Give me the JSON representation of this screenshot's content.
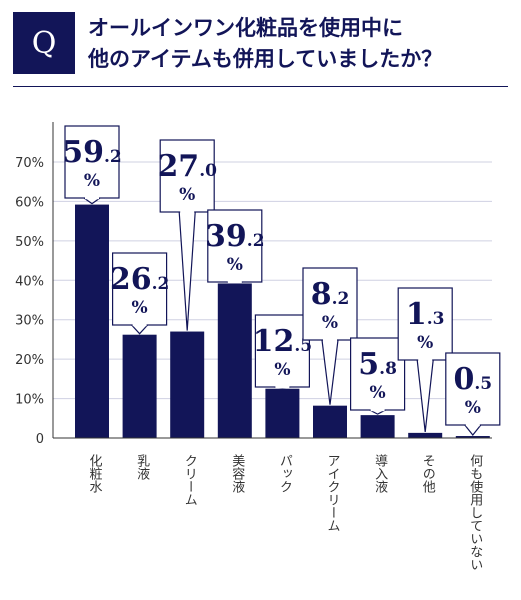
{
  "question": {
    "badge": "Q",
    "line1": "オールインワン化粧品を使用中に",
    "line2": "他のアイテムも併用していましたか？"
  },
  "colors": {
    "bar": "#121558",
    "grid": "#cfd0e2",
    "callout_border": "#121558"
  },
  "chart_data": {
    "type": "bar",
    "title": "",
    "xlabel": "",
    "ylabel": "",
    "unit": "%",
    "ylim": [
      0,
      70
    ],
    "yticks": [
      "0",
      "10%",
      "20%",
      "30%",
      "40%",
      "50%",
      "60%",
      "70%"
    ],
    "categories": [
      "化粧水",
      "乳液",
      "クリーム",
      "美容液",
      "パック",
      "アイクリーム",
      "導入液",
      "その他",
      "何も使用していない"
    ],
    "values": [
      59.2,
      26.2,
      27.0,
      39.2,
      12.5,
      8.2,
      5.8,
      1.3,
      0.5
    ],
    "value_labels": [
      {
        "int": "59",
        "dec": ".2"
      },
      {
        "int": "26",
        "dec": ".2"
      },
      {
        "int": "27",
        "dec": ".0"
      },
      {
        "int": "39",
        "dec": ".2"
      },
      {
        "int": "12",
        "dec": ".5"
      },
      {
        "int": "8",
        "dec": ".2"
      },
      {
        "int": "5",
        "dec": ".8"
      },
      {
        "int": "1",
        "dec": ".3"
      },
      {
        "int": "0",
        "dec": ".5"
      }
    ],
    "grid": true,
    "legend": "none"
  }
}
